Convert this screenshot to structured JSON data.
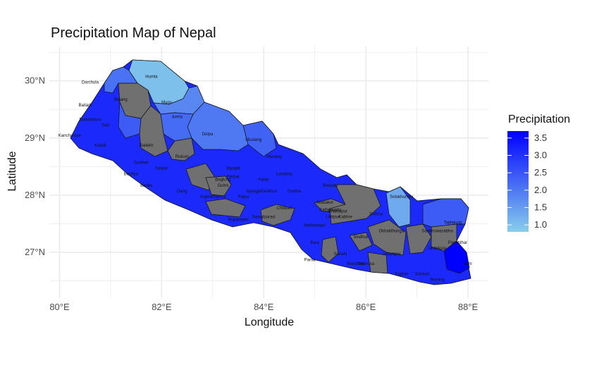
{
  "title": "Precipitation Map of Nepal",
  "xlabel": "Longitude",
  "ylabel": "Latitude",
  "x_ticks": [
    {
      "value": 80,
      "label": "80°E"
    },
    {
      "value": 82,
      "label": "82°E"
    },
    {
      "value": 84,
      "label": "84°E"
    },
    {
      "value": 86,
      "label": "86°E"
    },
    {
      "value": 88,
      "label": "88°E"
    }
  ],
  "y_ticks": [
    {
      "value": 27,
      "label": "27°N"
    },
    {
      "value": 28,
      "label": "28°N"
    },
    {
      "value": 29,
      "label": "29°N"
    },
    {
      "value": 30,
      "label": "30°N"
    }
  ],
  "xlim": [
    79.8,
    88.4
  ],
  "ylim": [
    26.2,
    30.6
  ],
  "legend": {
    "title": "Precipitation",
    "ticks": [
      {
        "value": 1.0,
        "label": "1.0"
      },
      {
        "value": 1.5,
        "label": "1.5"
      },
      {
        "value": 2.0,
        "label": "2.0"
      },
      {
        "value": 2.5,
        "label": "2.5"
      },
      {
        "value": 3.0,
        "label": "3.0"
      },
      {
        "value": 3.5,
        "label": "3.5"
      }
    ],
    "range": [
      0.8,
      3.7
    ],
    "low_color": "#87CEEB",
    "high_color": "#0000FF",
    "missing_color": "#707070"
  },
  "chart_data": {
    "type": "choropleth",
    "grid": true,
    "legend_placement": "right",
    "districts": [
      {
        "name": "Humla",
        "lon": 81.8,
        "lat": 30.05,
        "value": 1.0
      },
      {
        "name": "Darchula",
        "lon": 80.6,
        "lat": 29.95,
        "value": 2.1
      },
      {
        "name": "Bajang",
        "lon": 81.2,
        "lat": 29.65,
        "value": null
      },
      {
        "name": "Baitadi",
        "lon": 80.5,
        "lat": 29.55,
        "value": 2.2
      },
      {
        "name": "Mugu",
        "lon": 82.1,
        "lat": 29.6,
        "value": 1.8
      },
      {
        "name": "Dadeldhura",
        "lon": 80.6,
        "lat": 29.3,
        "value": 2.6
      },
      {
        "name": "Doti",
        "lon": 80.9,
        "lat": 29.2,
        "value": 2.4
      },
      {
        "name": "Jumla",
        "lon": 82.3,
        "lat": 29.35,
        "value": 2.2
      },
      {
        "name": "Kanchanpur",
        "lon": 80.2,
        "lat": 29.02,
        "value": 3.0
      },
      {
        "name": "Dolpa",
        "lon": 82.9,
        "lat": 29.05,
        "value": 2.0
      },
      {
        "name": "Kailali",
        "lon": 80.8,
        "lat": 28.85,
        "value": 2.9
      },
      {
        "name": "Dailekh",
        "lon": 81.7,
        "lat": 28.85,
        "value": null
      },
      {
        "name": "Mustang",
        "lon": 83.8,
        "lat": 28.95,
        "value": 2.3
      },
      {
        "name": "Rukum",
        "lon": 82.4,
        "lat": 28.65,
        "value": 3.0
      },
      {
        "name": "Manang",
        "lon": 84.2,
        "lat": 28.65,
        "value": 2.8
      },
      {
        "name": "Surkhet",
        "lon": 81.6,
        "lat": 28.55,
        "value": 2.9
      },
      {
        "name": "Salyan",
        "lon": 82.0,
        "lat": 28.45,
        "value": 3.2
      },
      {
        "name": "Myagdi",
        "lon": 83.4,
        "lat": 28.45,
        "value": 3.1
      },
      {
        "name": "Lamjung",
        "lon": 84.4,
        "lat": 28.35,
        "value": 2.9
      },
      {
        "name": "Bardiya",
        "lon": 81.4,
        "lat": 28.35,
        "value": 3.2
      },
      {
        "name": "Parbat",
        "lon": 83.4,
        "lat": 28.3,
        "value": 3.1
      },
      {
        "name": "Kaski",
        "lon": 84.0,
        "lat": 28.25,
        "value": 2.9
      },
      {
        "name": "Baglung",
        "lon": 83.2,
        "lat": 28.25,
        "value": 3.1
      },
      {
        "name": "Rasuwa",
        "lon": 85.3,
        "lat": 28.15,
        "value": 2.6
      },
      {
        "name": "Banke",
        "lon": 81.7,
        "lat": 28.15,
        "value": 3.3
      },
      {
        "name": "Gulmi",
        "lon": 83.2,
        "lat": 28.15,
        "value": 3.3
      },
      {
        "name": "Gorkha",
        "lon": 84.6,
        "lat": 28.05,
        "value": 2.6
      },
      {
        "name": "Tanahun",
        "lon": 84.1,
        "lat": 28.05,
        "value": 3.1
      },
      {
        "name": "Syangja",
        "lon": 83.8,
        "lat": 28.05,
        "value": 3.2
      },
      {
        "name": "Solukhumbu",
        "lon": 86.7,
        "lat": 27.95,
        "value": 1.3
      },
      {
        "name": "Dang",
        "lon": 82.4,
        "lat": 28.05,
        "value": 3.3
      },
      {
        "name": "Arghakhanchi",
        "lon": 83.0,
        "lat": 27.95,
        "value": 3.3
      },
      {
        "name": "Palpa",
        "lon": 83.6,
        "lat": 27.95,
        "value": 3.4
      },
      {
        "name": "Nuwakot",
        "lon": 85.2,
        "lat": 27.85,
        "value": 2.8
      },
      {
        "name": "Chitwan",
        "lon": 84.4,
        "lat": 27.75,
        "value": 3.0
      },
      {
        "name": "Kathmandu",
        "lon": 85.3,
        "lat": 27.72,
        "value": null
      },
      {
        "name": "Bhaktapur",
        "lon": 85.45,
        "lat": 27.7,
        "value": null
      },
      {
        "name": "Lalitpur",
        "lon": 85.35,
        "lat": 27.6,
        "value": null
      },
      {
        "name": "Kabhre",
        "lon": 85.6,
        "lat": 27.6,
        "value": null
      },
      {
        "name": "Dolkha",
        "lon": 86.2,
        "lat": 27.65,
        "value": null
      },
      {
        "name": "Nawalparasi",
        "lon": 84.0,
        "lat": 27.6,
        "value": 3.3
      },
      {
        "name": "Rupandehi",
        "lon": 83.5,
        "lat": 27.55,
        "value": 3.4
      },
      {
        "name": "Taplejung",
        "lon": 87.7,
        "lat": 27.5,
        "value": 2.4
      },
      {
        "name": "Makwanpur",
        "lon": 85.0,
        "lat": 27.45,
        "value": 3.1
      },
      {
        "name": "Okhaldhunga",
        "lon": 86.5,
        "lat": 27.35,
        "value": null
      },
      {
        "name": "Sankhuwasabha",
        "lon": 87.4,
        "lat": 27.35,
        "value": null
      },
      {
        "name": "Sindhuli",
        "lon": 85.9,
        "lat": 27.25,
        "value": 3.0
      },
      {
        "name": "Bara",
        "lon": 85.0,
        "lat": 27.15,
        "value": 3.1
      },
      {
        "name": "Panchthar",
        "lon": 87.8,
        "lat": 27.15,
        "value": null
      },
      {
        "name": "Dhankuta",
        "lon": 87.4,
        "lat": 27.05,
        "value": 3.1
      },
      {
        "name": "Sarlahi",
        "lon": 85.5,
        "lat": 26.95,
        "value": 3.0
      },
      {
        "name": "Udayapur",
        "lon": 86.5,
        "lat": 26.95,
        "value": 3.2
      },
      {
        "name": "Parsa",
        "lon": 84.9,
        "lat": 26.85,
        "value": 3.2
      },
      {
        "name": "Mahottari",
        "lon": 85.8,
        "lat": 26.78,
        "value": 3.1
      },
      {
        "name": "Dhanusa",
        "lon": 86.0,
        "lat": 26.78,
        "value": 3.1
      },
      {
        "name": "Ilam",
        "lon": 88.0,
        "lat": 26.78,
        "value": 3.7
      },
      {
        "name": "Saptari",
        "lon": 86.7,
        "lat": 26.6,
        "value": 3.1
      },
      {
        "name": "Sunsari",
        "lon": 87.1,
        "lat": 26.6,
        "value": 3.2
      },
      {
        "name": "Morang",
        "lon": 87.4,
        "lat": 26.5,
        "value": 3.3
      }
    ]
  }
}
